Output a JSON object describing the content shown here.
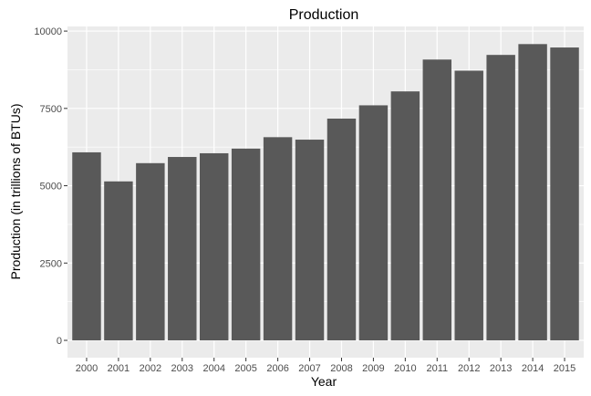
{
  "chart_data": {
    "type": "bar",
    "title": "Production",
    "xlabel": "Year",
    "ylabel": "Production (in trillions of BTUs)",
    "categories": [
      "2000",
      "2001",
      "2002",
      "2003",
      "2004",
      "2005",
      "2006",
      "2007",
      "2008",
      "2009",
      "2010",
      "2011",
      "2012",
      "2013",
      "2014",
      "2015"
    ],
    "values": [
      6080,
      5140,
      5730,
      5930,
      6050,
      6200,
      6570,
      6490,
      7170,
      7600,
      8050,
      9080,
      8720,
      9230,
      9580,
      9470
    ],
    "ylim": [
      -560,
      10150
    ],
    "yticks": [
      0,
      2500,
      5000,
      7500,
      10000
    ],
    "grid": true,
    "colors": {
      "panel_bg": "#ebebeb",
      "grid_major": "#ffffff",
      "bar_fill": "#595959",
      "tick_mark": "#333333"
    }
  }
}
